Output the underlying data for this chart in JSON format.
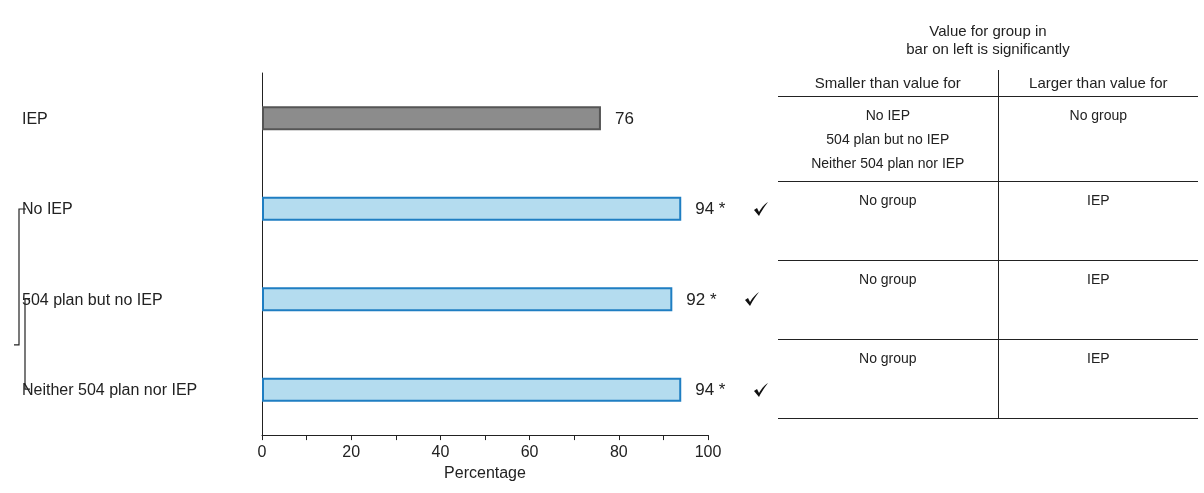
{
  "chart_data": [
    {
      "type": "bar",
      "orientation": "horizontal",
      "xlabel": "Percentage",
      "categories": [
        "IEP",
        "No IEP",
        "504 plan but no IEP",
        "Neither 504 plan nor IEP"
      ],
      "values": [
        76,
        94,
        92,
        94
      ],
      "colors": [
        "#8c8c8c",
        "#b4dcef",
        "#b4dcef",
        "#b4dcef"
      ],
      "value_labels": [
        "76",
        "94 *",
        "92 *",
        "94 *"
      ],
      "xlim": [
        0,
        100
      ],
      "xticks": [
        0,
        {
          "value": 10,
          "label": null
        },
        20,
        {
          "value": 30,
          "label": null
        },
        40,
        {
          "value": 50,
          "label": null
        },
        60,
        {
          "value": 70,
          "label": null
        },
        80,
        {
          "value": 90,
          "label": null
        },
        100
      ],
      "grid": false
    },
    {
      "type": "other",
      "title": "Value for group in\nbar on left is significantly",
      "categories": [
        "Smaller than value for",
        "Larger than value for"
      ],
      "annotations": [
        "No IEP\n504 plan but no IEP\nNeither 504 plan nor IEP",
        "No group",
        "No group",
        "IEP",
        "No group",
        "IEP",
        "No group",
        "IEP"
      ]
    }
  ]
}
